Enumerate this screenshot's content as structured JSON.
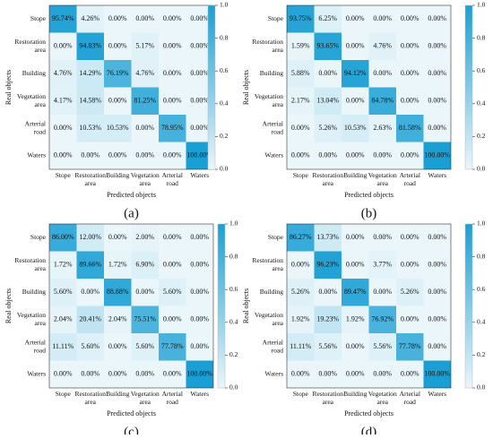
{
  "colors": {
    "low": "#eaf6fa",
    "high": "#1a9fd4",
    "text": "#111111",
    "axis": "#333333"
  },
  "colorbar_ticks": [
    "1.0",
    "0.8",
    "0.6",
    "0.4",
    "0.2",
    "0.0"
  ],
  "chart_data": [
    {
      "type": "heatmap",
      "panel_label": "(a)",
      "xlabel": "Predicted objects",
      "ylabel": "Real objects",
      "x_categories": [
        "Stope",
        "Restoration area",
        "Building",
        "Vegetation area",
        "Arterial road",
        "Waters"
      ],
      "y_categories": [
        "Stope",
        "Restoration area",
        "Building",
        "Vegetation area",
        "Arterial road",
        "Waters"
      ],
      "colorbar": [
        0,
        1
      ],
      "values": [
        [
          0.9574,
          0.0426,
          0.0,
          0.0,
          0.0,
          0.0
        ],
        [
          0.0,
          0.9483,
          0.0,
          0.0517,
          0.0,
          0.0
        ],
        [
          0.0476,
          0.1429,
          0.7619,
          0.0476,
          0.0,
          0.0
        ],
        [
          0.0417,
          0.1458,
          0.0,
          0.8125,
          0.0,
          0.0
        ],
        [
          0.0,
          0.1053,
          0.1053,
          0.0,
          0.7895,
          0.0
        ],
        [
          0.0,
          0.0,
          0.0,
          0.0,
          0.0,
          1.0
        ]
      ],
      "labels": [
        [
          "95.74%",
          "4.26%",
          "0.00%",
          "0.00%",
          "0.00%",
          "0.00%"
        ],
        [
          "0.00%",
          "94.83%",
          "0.00%",
          "5.17%",
          "0.00%",
          "0.00%"
        ],
        [
          "4.76%",
          "14.29%",
          "76.19%",
          "4.76%",
          "0.00%",
          "0.00%"
        ],
        [
          "4.17%",
          "14.58%",
          "0.00%",
          "81.25%",
          "0.00%",
          "0.00%"
        ],
        [
          "0.00%",
          "10.53%",
          "10.53%",
          "0.00%",
          "78.95%",
          "0.00%"
        ],
        [
          "0.00%",
          "0.00%",
          "0.00%",
          "0.00%",
          "0.00%",
          "100.00%"
        ]
      ]
    },
    {
      "type": "heatmap",
      "panel_label": "(b)",
      "xlabel": "Predicted objects",
      "ylabel": "Real objects",
      "x_categories": [
        "Stope",
        "Restoration area",
        "Building",
        "Vegetation area",
        "Arterial road",
        "Waters"
      ],
      "y_categories": [
        "Stope",
        "Restoration area",
        "Building",
        "Vegetation area",
        "Arterial road",
        "Waters"
      ],
      "colorbar": [
        0,
        1
      ],
      "values": [
        [
          0.9375,
          0.0625,
          0.0,
          0.0,
          0.0,
          0.0
        ],
        [
          0.0159,
          0.9365,
          0.0,
          0.0476,
          0.0,
          0.0
        ],
        [
          0.0588,
          0.0,
          0.9412,
          0.0,
          0.0,
          0.0
        ],
        [
          0.0217,
          0.1304,
          0.0,
          0.8478,
          0.0,
          0.0
        ],
        [
          0.0,
          0.0526,
          0.1053,
          0.0263,
          0.8158,
          0.0
        ],
        [
          0.0,
          0.0,
          0.0,
          0.0,
          0.0,
          1.0
        ]
      ],
      "labels": [
        [
          "93.75%",
          "6.25%",
          "0.00%",
          "0.00%",
          "0.00%",
          "0.00%"
        ],
        [
          "1.59%",
          "93.65%",
          "0.00%",
          "4.76%",
          "0.00%",
          "0.00%"
        ],
        [
          "5.88%",
          "0.00%",
          "94.12%",
          "0.00%",
          "0.00%",
          "0.00%"
        ],
        [
          "2.17%",
          "13.04%",
          "0.00%",
          "84.78%",
          "0.00%",
          "0.00%"
        ],
        [
          "0.00%",
          "5.26%",
          "10.53%",
          "2.63%",
          "81.58%",
          "0.00%"
        ],
        [
          "0.00%",
          "0.00%",
          "0.00%",
          "0.00%",
          "0.00%",
          "100.00%"
        ]
      ]
    },
    {
      "type": "heatmap",
      "panel_label": "(c)",
      "xlabel": "Predicted objects",
      "ylabel": "Real objects",
      "x_categories": [
        "Stope",
        "Restoration area",
        "Building",
        "Vegetation area",
        "Arterial road",
        "Waters"
      ],
      "y_categories": [
        "Stope",
        "Restoration area",
        "Building",
        "Vegetation area",
        "Arterial road",
        "Waters"
      ],
      "colorbar": [
        0,
        1
      ],
      "values": [
        [
          0.86,
          0.12,
          0.0,
          0.02,
          0.0,
          0.0
        ],
        [
          0.0172,
          0.8966,
          0.0172,
          0.069,
          0.0,
          0.0
        ],
        [
          0.056,
          0.0,
          0.8888,
          0.0,
          0.056,
          0.0
        ],
        [
          0.0204,
          0.2041,
          0.0204,
          0.7551,
          0.0,
          0.0
        ],
        [
          0.1111,
          0.056,
          0.0,
          0.056,
          0.7778,
          0.0
        ],
        [
          0.0,
          0.0,
          0.0,
          0.0,
          0.0,
          1.0
        ]
      ],
      "labels": [
        [
          "86.00%",
          "12.00%",
          "0.00%",
          "2.00%",
          "0.00%",
          "0.00%"
        ],
        [
          "1.72%",
          "89.66%",
          "1.72%",
          "6.90%",
          "0.00%",
          "0.00%"
        ],
        [
          "5.60%",
          "0.00%",
          "88.88%",
          "0.00%",
          "5.60%",
          "0.00%"
        ],
        [
          "2.04%",
          "20.41%",
          "2.04%",
          "75.51%",
          "0.00%",
          "0.00%"
        ],
        [
          "11.11%",
          "5.60%",
          "0.00%",
          "5.60%",
          "77.78%",
          "0.00%"
        ],
        [
          "0.00%",
          "0.00%",
          "0.00%",
          "0.00%",
          "0.00%",
          "100.00%"
        ]
      ]
    },
    {
      "type": "heatmap",
      "panel_label": "(d)",
      "xlabel": "Predicted objects",
      "ylabel": "Real objects",
      "x_categories": [
        "Stope",
        "Restoration area",
        "Building",
        "Vegetation area",
        "Arterial road",
        "Waters"
      ],
      "y_categories": [
        "Stope",
        "Restoration area",
        "Building",
        "Vegetation area",
        "Arterial road",
        "Waters"
      ],
      "colorbar": [
        0,
        1
      ],
      "values": [
        [
          0.8627,
          0.1373,
          0.0,
          0.0,
          0.0,
          0.0
        ],
        [
          0.0,
          0.9623,
          0.0,
          0.0377,
          0.0,
          0.0
        ],
        [
          0.0526,
          0.0,
          0.8947,
          0.0,
          0.0526,
          0.0
        ],
        [
          0.0192,
          0.1923,
          0.0192,
          0.7692,
          0.0,
          0.0
        ],
        [
          0.1111,
          0.0556,
          0.0,
          0.0556,
          0.7778,
          0.0
        ],
        [
          0.0,
          0.0,
          0.0,
          0.0,
          0.0,
          1.0
        ]
      ],
      "labels": [
        [
          "86.27%",
          "13.73%",
          "0.00%",
          "0.00%",
          "0.00%",
          "0.00%"
        ],
        [
          "0.00%",
          "96.23%",
          "0.00%",
          "3.77%",
          "0.00%",
          "0.00%"
        ],
        [
          "5.26%",
          "0.00%",
          "89.47%",
          "0.00%",
          "5.26%",
          "0.00%"
        ],
        [
          "1.92%",
          "19.23%",
          "1.92%",
          "76.92%",
          "0.00%",
          "0.00%"
        ],
        [
          "11.11%",
          "5.56%",
          "0.00%",
          "5.56%",
          "77.78%",
          "0.00%"
        ],
        [
          "0.00%",
          "0.00%",
          "0.00%",
          "0.00%",
          "0.00%",
          "100.00%"
        ]
      ]
    }
  ]
}
